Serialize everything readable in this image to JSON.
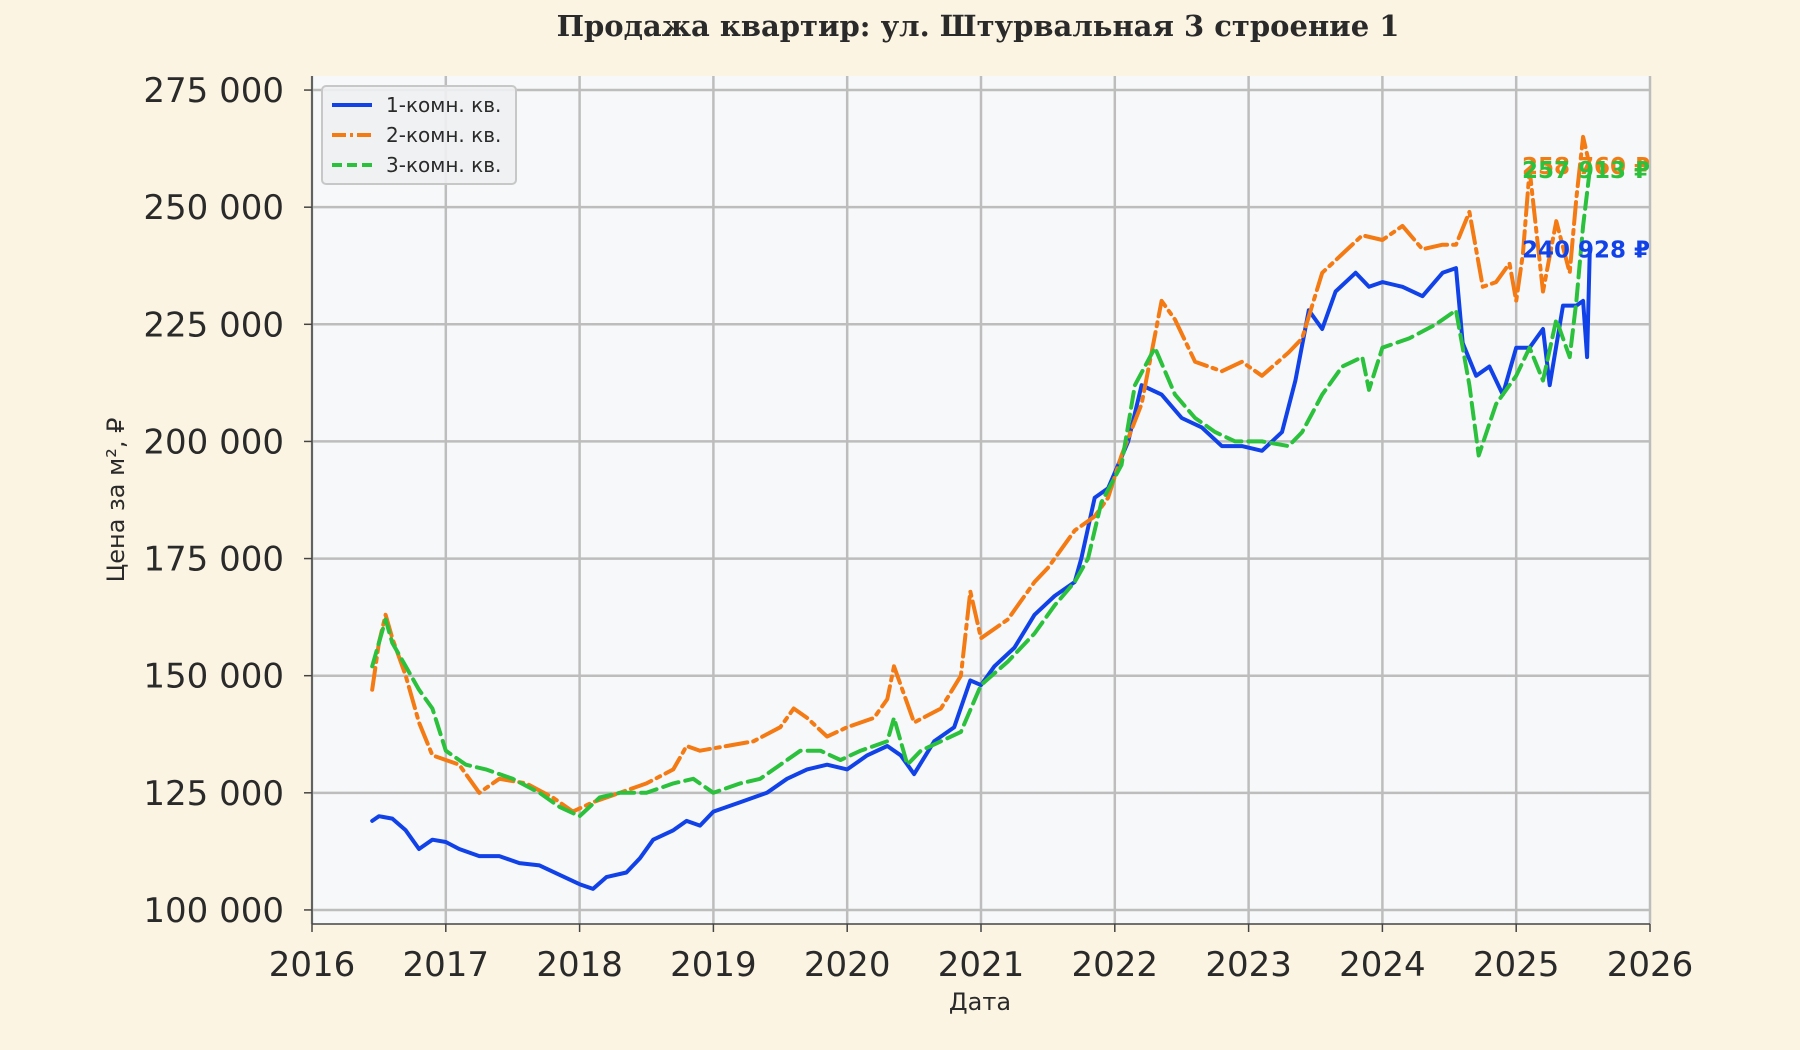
{
  "chart_data": {
    "type": "line",
    "title": "Продажа квартир: ул. Штурвальная 3 строение 1",
    "xlabel": "Дата",
    "ylabel": "Цена за м², ₽",
    "xlim": [
      2016,
      2026
    ],
    "ylim": [
      97000,
      278000
    ],
    "x_ticks": [
      "2016",
      "2017",
      "2018",
      "2019",
      "2020",
      "2021",
      "2022",
      "2023",
      "2024",
      "2025",
      "2026"
    ],
    "y_ticks": [
      {
        "value": 100000,
        "label": "100 000"
      },
      {
        "value": 125000,
        "label": "125 000"
      },
      {
        "value": 150000,
        "label": "150 000"
      },
      {
        "value": 175000,
        "label": "175 000"
      },
      {
        "value": 200000,
        "label": "200 000"
      },
      {
        "value": 225000,
        "label": "225 000"
      },
      {
        "value": 250000,
        "label": "250 000"
      },
      {
        "value": 275000,
        "label": "275 000"
      }
    ],
    "grid": true,
    "legend_position": "top-left",
    "series": [
      {
        "name": "1-комн. кв.",
        "color": "#1142e8",
        "dash": "solid",
        "end_label": "240 928 ₽",
        "x": [
          2016.45,
          2016.5,
          2016.6,
          2016.7,
          2016.8,
          2016.9,
          2017.0,
          2017.1,
          2017.25,
          2017.4,
          2017.55,
          2017.7,
          2017.85,
          2018.0,
          2018.1,
          2018.2,
          2018.35,
          2018.45,
          2018.55,
          2018.7,
          2018.8,
          2018.9,
          2019.0,
          2019.2,
          2019.4,
          2019.55,
          2019.7,
          2019.85,
          2020.0,
          2020.15,
          2020.3,
          2020.4,
          2020.5,
          2020.65,
          2020.8,
          2020.92,
          2021.0,
          2021.1,
          2021.25,
          2021.4,
          2021.55,
          2021.7,
          2021.75,
          2021.85,
          2021.95,
          2022.1,
          2022.2,
          2022.35,
          2022.5,
          2022.65,
          2022.8,
          2022.95,
          2023.1,
          2023.25,
          2023.35,
          2023.45,
          2023.55,
          2023.65,
          2023.8,
          2023.9,
          2024.0,
          2024.15,
          2024.3,
          2024.45,
          2024.55,
          2024.6,
          2024.7,
          2024.8,
          2024.9,
          2025.0,
          2025.1,
          2025.2,
          2025.25,
          2025.35,
          2025.45,
          2025.5,
          2025.53,
          2025.55
        ],
        "y": [
          119000,
          120000,
          119500,
          117000,
          113000,
          115000,
          114500,
          113000,
          111500,
          111500,
          110000,
          109500,
          107500,
          105500,
          104500,
          107000,
          108000,
          111000,
          115000,
          117000,
          119000,
          118000,
          121000,
          123000,
          125000,
          128000,
          130000,
          131000,
          130000,
          133000,
          135000,
          133000,
          129000,
          136000,
          139000,
          149000,
          148000,
          152000,
          156000,
          163000,
          167000,
          170000,
          175000,
          188000,
          190000,
          200000,
          212000,
          210000,
          205000,
          203000,
          199000,
          199000,
          198000,
          202000,
          213000,
          228000,
          224000,
          232000,
          236000,
          233000,
          234000,
          233000,
          231000,
          236000,
          237000,
          221000,
          214000,
          216000,
          210000,
          220000,
          220000,
          224000,
          212000,
          229000,
          229000,
          230000,
          218000,
          240928
        ]
      },
      {
        "name": "2-комн. кв.",
        "color": "#f47a14",
        "dash": "dashdot",
        "end_label": "258 760 ₽",
        "x": [
          2016.45,
          2016.5,
          2016.55,
          2016.6,
          2016.7,
          2016.8,
          2016.9,
          2017.0,
          2017.1,
          2017.25,
          2017.4,
          2017.6,
          2017.8,
          2017.95,
          2018.1,
          2018.3,
          2018.5,
          2018.7,
          2018.8,
          2018.9,
          2019.1,
          2019.3,
          2019.5,
          2019.6,
          2019.7,
          2019.85,
          2020.0,
          2020.2,
          2020.3,
          2020.35,
          2020.5,
          2020.7,
          2020.85,
          2020.92,
          2021.0,
          2021.2,
          2021.4,
          2021.5,
          2021.7,
          2021.85,
          2021.95,
          2022.05,
          2022.2,
          2022.35,
          2022.45,
          2022.6,
          2022.8,
          2022.95,
          2023.1,
          2023.3,
          2023.4,
          2023.55,
          2023.7,
          2023.85,
          2024.0,
          2024.15,
          2024.3,
          2024.45,
          2024.55,
          2024.65,
          2024.75,
          2024.85,
          2024.95,
          2025.0,
          2025.05,
          2025.1,
          2025.2,
          2025.3,
          2025.4,
          2025.45,
          2025.5,
          2025.55
        ],
        "y": [
          147000,
          157000,
          163000,
          158000,
          150000,
          140000,
          133000,
          132000,
          131000,
          125000,
          128000,
          127000,
          124000,
          121000,
          123000,
          125000,
          127000,
          130000,
          135000,
          134000,
          135000,
          136000,
          139000,
          143000,
          141000,
          137000,
          139000,
          141000,
          145000,
          152000,
          140000,
          143000,
          150000,
          168000,
          158000,
          162000,
          170000,
          173000,
          181000,
          184000,
          188000,
          197000,
          208000,
          230000,
          226000,
          217000,
          215000,
          217000,
          214000,
          219000,
          222000,
          236000,
          240000,
          244000,
          243000,
          246000,
          241000,
          242000,
          242000,
          249000,
          233000,
          234000,
          238000,
          230000,
          240000,
          258000,
          232000,
          247000,
          236000,
          252000,
          265000,
          258760
        ]
      },
      {
        "name": "3-комн. кв.",
        "color": "#2bc13d",
        "dash": "dashed",
        "end_label": "257 913 ₽",
        "x": [
          2016.45,
          2016.5,
          2016.55,
          2016.6,
          2016.7,
          2016.8,
          2016.9,
          2017.0,
          2017.15,
          2017.3,
          2017.5,
          2017.7,
          2017.85,
          2018.0,
          2018.15,
          2018.3,
          2018.5,
          2018.7,
          2018.85,
          2019.0,
          2019.2,
          2019.35,
          2019.5,
          2019.65,
          2019.8,
          2019.95,
          2020.1,
          2020.3,
          2020.35,
          2020.45,
          2020.55,
          2020.7,
          2020.85,
          2021.0,
          2021.2,
          2021.4,
          2021.55,
          2021.7,
          2021.8,
          2021.9,
          2022.05,
          2022.15,
          2022.3,
          2022.45,
          2022.6,
          2022.75,
          2022.9,
          2023.1,
          2023.3,
          2023.4,
          2023.55,
          2023.7,
          2023.85,
          2023.9,
          2024.0,
          2024.2,
          2024.4,
          2024.55,
          2024.65,
          2024.72,
          2024.85,
          2025.0,
          2025.1,
          2025.2,
          2025.3,
          2025.4,
          2025.45,
          2025.5,
          2025.55
        ],
        "y": [
          152000,
          157000,
          162000,
          157000,
          152000,
          147000,
          143000,
          134000,
          131000,
          130000,
          128000,
          125000,
          122000,
          120000,
          124000,
          125000,
          125000,
          127000,
          128000,
          125000,
          127000,
          128000,
          131000,
          134000,
          134000,
          132000,
          134000,
          136000,
          141000,
          131000,
          134000,
          136000,
          138000,
          148000,
          153000,
          159000,
          165000,
          170000,
          175000,
          187000,
          195000,
          212000,
          220000,
          210000,
          205000,
          202000,
          200000,
          200000,
          199000,
          202000,
          210000,
          216000,
          218000,
          211000,
          220000,
          222000,
          225000,
          228000,
          212000,
          197000,
          208000,
          214000,
          220000,
          213000,
          226000,
          218000,
          230000,
          246000,
          257913
        ]
      }
    ]
  }
}
